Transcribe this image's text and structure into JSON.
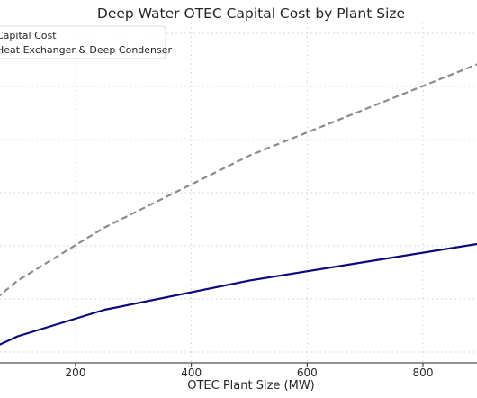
{
  "chart_data": {
    "type": "line",
    "title": "Deep Water OTEC Capital Cost by Plant Size",
    "xlabel": "OTEC Plant Size (MW)",
    "ylabel": "",
    "x_ticks": [
      200,
      400,
      600,
      800
    ],
    "xlim": [
      50,
      900
    ],
    "ylim": [
      0,
      100
    ],
    "grid": true,
    "legend_position": "top-left",
    "series": [
      {
        "name": "Capital Cost",
        "color": "#8c8c8c",
        "style": "dashed",
        "x": [
          50,
          100,
          250,
          500,
          900
        ],
        "y": [
          11,
          15.5,
          25.5,
          39,
          56.5
        ]
      },
      {
        "name": "Heat Exchanger & Deep Condenser",
        "color": "#0a0a80",
        "style": "solid",
        "x": [
          50,
          100,
          250,
          500,
          900
        ],
        "y": [
          2.5,
          5,
          10,
          15.5,
          22.5
        ]
      }
    ]
  }
}
